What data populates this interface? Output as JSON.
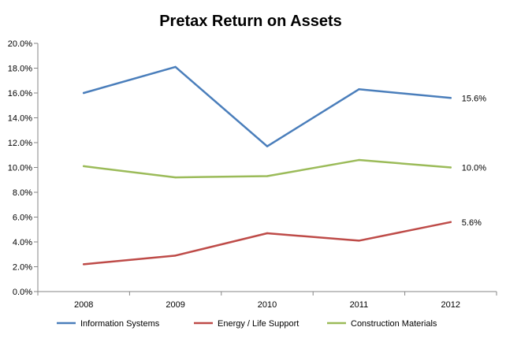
{
  "chart_data": {
    "type": "line",
    "title": "Pretax Return on Assets",
    "xlabel": "",
    "ylabel": "",
    "categories": [
      "2008",
      "2009",
      "2010",
      "2011",
      "2012"
    ],
    "ylim": [
      0,
      20
    ],
    "y_ticks": [
      "0.0%",
      "2.0%",
      "4.0%",
      "6.0%",
      "8.0%",
      "10.0%",
      "12.0%",
      "14.0%",
      "16.0%",
      "18.0%",
      "20.0%"
    ],
    "grid": false,
    "legend_position": "bottom",
    "series": [
      {
        "name": "Information Systems",
        "values": [
          16.0,
          18.1,
          11.7,
          16.3,
          15.6
        ],
        "color": "#4a7ebb",
        "end_label": "15.6%"
      },
      {
        "name": "Energy / Life Support",
        "values": [
          2.2,
          2.9,
          4.7,
          4.1,
          5.6
        ],
        "color": "#be4b48",
        "end_label": "5.6%"
      },
      {
        "name": "Construction Materials",
        "values": [
          10.1,
          9.2,
          9.3,
          10.6,
          10.0
        ],
        "color": "#9bbb59",
        "end_label": "10.0%"
      }
    ]
  }
}
